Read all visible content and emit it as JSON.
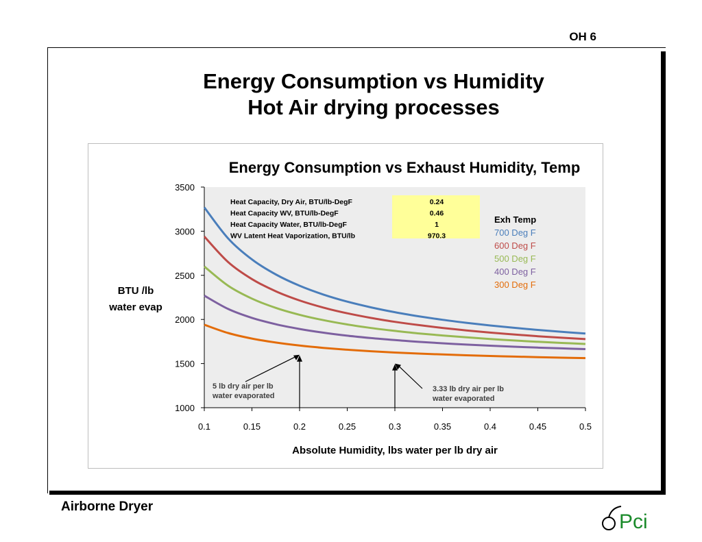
{
  "header": {
    "slide_label": "OH 6"
  },
  "title": {
    "line1": "Energy Consumption vs Humidity",
    "line2": "Hot Air drying processes"
  },
  "footer": {
    "text": "Airborne Dryer",
    "logo_text": "Pci"
  },
  "chart_data": {
    "type": "line",
    "title": "Energy Consumption vs Exhaust Humidity, Temp",
    "xlabel": "Absolute Humidity, lbs water per lb dry air",
    "ylabel_lines": [
      "BTU /lb",
      "water evap"
    ],
    "xlim": [
      0.1,
      0.5
    ],
    "ylim": [
      1000,
      3500
    ],
    "xticks": [
      "0.1",
      "0.15",
      "0.2",
      "0.25",
      "0.3",
      "0.35",
      "0.4",
      "0.45",
      "0.5"
    ],
    "yticks": [
      "1000",
      "1500",
      "2000",
      "2500",
      "3000",
      "3500"
    ],
    "x": [
      0.1,
      0.125,
      0.15,
      0.175,
      0.2,
      0.225,
      0.25,
      0.275,
      0.3,
      0.325,
      0.35,
      0.375,
      0.4,
      0.425,
      0.45,
      0.475,
      0.5
    ],
    "series": [
      {
        "name": "700 Deg F",
        "color": "#4a7ebb",
        "values": [
          3270,
          2918,
          2680,
          2510,
          2382,
          2282,
          2202,
          2137,
          2082,
          2036,
          1996,
          1962,
          1932,
          1905,
          1881,
          1860,
          1840
        ]
      },
      {
        "name": "600 Deg F",
        "color": "#be4b48",
        "values": [
          2940,
          2650,
          2457,
          2319,
          2215,
          2134,
          2070,
          2017,
          1973,
          1936,
          1904,
          1876,
          1851,
          1830,
          1810,
          1793,
          1777
        ]
      },
      {
        "name": "500 Deg F",
        "color": "#98b954",
        "values": [
          2600,
          2382,
          2236,
          2131,
          2053,
          1992,
          1943,
          1903,
          1870,
          1842,
          1818,
          1797,
          1778,
          1762,
          1747,
          1734,
          1722
        ]
      },
      {
        "name": "400 Deg F",
        "color": "#7d60a0",
        "values": [
          2270,
          2119,
          2018,
          1946,
          1892,
          1850,
          1816,
          1789,
          1766,
          1746,
          1730,
          1715,
          1703,
          1691,
          1681,
          1672,
          1664
        ]
      },
      {
        "name": "300 Deg F",
        "color": "#e36c09",
        "values": [
          1940,
          1846,
          1783,
          1738,
          1704,
          1678,
          1657,
          1640,
          1625,
          1613,
          1603,
          1594,
          1586,
          1579,
          1573,
          1567,
          1562
        ]
      }
    ],
    "legend": {
      "title": "Exh Temp",
      "position": "right"
    },
    "constants_table": [
      {
        "label": "Heat Capacity, Dry Air, BTU/lb-DegF",
        "value": "0.24"
      },
      {
        "label": "Heat Capacity WV, BTU/lb-DegF",
        "value": "0.46"
      },
      {
        "label": "Heat Capacity Water, BTU/lb-DegF",
        "value": "1"
      },
      {
        "label": "WV Latent Heat Vaporization, BTU/lb",
        "value": "970.3"
      }
    ],
    "annotations": [
      {
        "lines": [
          "5 lb dry air per lb",
          "water evaporated"
        ],
        "target_x": 0.2,
        "target_y": 1600
      },
      {
        "lines": [
          "3.33 lb dry air per lb",
          "water evaporated"
        ],
        "target_x": 0.3,
        "target_y": 1500
      }
    ]
  }
}
